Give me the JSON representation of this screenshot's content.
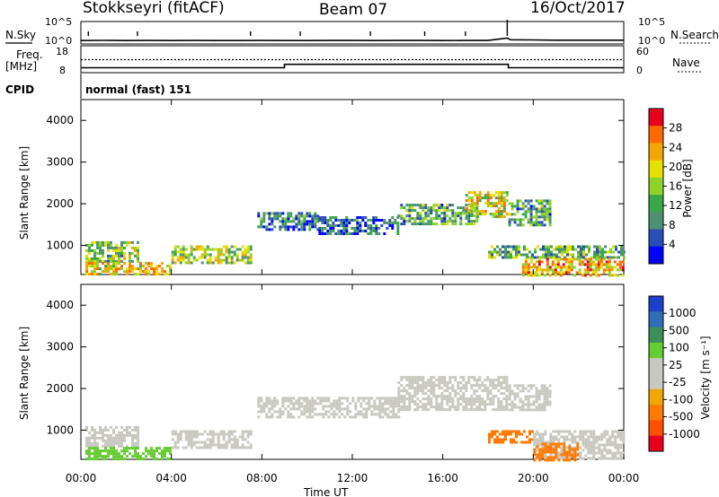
{
  "header": {
    "station": "Stokkseyri (fitACF)",
    "beam": "Beam 07",
    "date": "16/Oct/2017"
  },
  "chart_data": [
    {
      "type": "line",
      "panel": "noise",
      "left_label": "N.Sky",
      "right_label": "N.Search",
      "left_ticks": [
        "10^5",
        "10^0"
      ],
      "right_ticks": [
        "10^5",
        "10^0"
      ],
      "x": [
        0,
        1,
        2,
        3,
        4,
        5,
        6,
        7,
        8,
        9,
        10,
        11,
        12,
        13,
        14,
        15,
        16,
        17,
        18,
        18.85,
        19,
        20,
        21,
        22,
        23,
        24
      ],
      "y_sky_log10": [
        0.6,
        0.65,
        0.6,
        0.62,
        0.6,
        0.63,
        0.6,
        0.6,
        0.62,
        0.6,
        0.6,
        0.62,
        0.62,
        0.6,
        0.63,
        0.62,
        0.6,
        0.62,
        0.62,
        1.2,
        0.8,
        0.75,
        0.7,
        0.7,
        0.7,
        0.7
      ],
      "spikes_x": [
        0.33,
        2.5,
        7.5,
        9.7,
        12.8,
        15.2,
        17.0,
        18.85
      ]
    },
    {
      "type": "line",
      "panel": "frequency",
      "left_label": "Freq.",
      "left_unit": "[MHz]",
      "right_label": "Nave",
      "left_ticks": [
        "18",
        "8"
      ],
      "right_ticks": [
        "60",
        "0"
      ],
      "x": [
        0,
        9.0,
        9.0,
        18.9,
        18.9,
        24
      ],
      "freq_mhz": [
        9.6,
        9.6,
        11.3,
        11.3,
        9.6,
        9.6
      ],
      "nave": [
        34,
        34,
        34,
        34,
        34,
        34
      ]
    },
    {
      "type": "text",
      "panel": "cpid",
      "label": "CPID",
      "value": "normal (fast) 151"
    },
    {
      "type": "heatmap",
      "panel": "power",
      "ylabel": "Slant Range [km]",
      "yticks": [
        "4000",
        "3000",
        "2000",
        "1000"
      ],
      "ylim": [
        300,
        4500
      ],
      "xlim": [
        0,
        24
      ],
      "colorbar_label": "Power [dB]",
      "colorbar_ticks": [
        "28",
        "24",
        "20",
        "16",
        "12",
        "8",
        "4"
      ],
      "colorbar_colors": [
        "#e8001f",
        "#ff6a00",
        "#f0a800",
        "#e4e000",
        "#8fd22a",
        "#3aa84a",
        "#4f8f75",
        "#2a4db8",
        "#0000ff"
      ],
      "regions": [
        {
          "x0": 0.2,
          "x1": 2.5,
          "r0": 600,
          "r1": 1100,
          "level": 0.45
        },
        {
          "x0": 0.2,
          "x1": 4.0,
          "r0": 300,
          "r1": 600,
          "level": 0.65
        },
        {
          "x0": 4.0,
          "x1": 7.5,
          "r0": 600,
          "r1": 1000,
          "level": 0.5
        },
        {
          "x0": 7.8,
          "x1": 10.5,
          "r0": 1400,
          "r1": 1800,
          "level": 0.25
        },
        {
          "x0": 10.5,
          "x1": 14.0,
          "r0": 1300,
          "r1": 1700,
          "level": 0.2
        },
        {
          "x0": 14.0,
          "x1": 17.5,
          "r0": 1500,
          "r1": 2000,
          "level": 0.35
        },
        {
          "x0": 17.0,
          "x1": 18.8,
          "r0": 1700,
          "r1": 2300,
          "level": 0.6
        },
        {
          "x0": 18.9,
          "x1": 20.8,
          "r0": 1500,
          "r1": 2100,
          "level": 0.35
        },
        {
          "x0": 18.0,
          "x1": 24.0,
          "r0": 700,
          "r1": 1000,
          "level": 0.4
        },
        {
          "x0": 19.5,
          "x1": 24.0,
          "r0": 300,
          "r1": 700,
          "level": 0.7
        }
      ]
    },
    {
      "type": "heatmap",
      "panel": "velocity",
      "ylabel": "Slant Range [km]",
      "yticks": [
        "4000",
        "3000",
        "2000",
        "1000"
      ],
      "ylim": [
        300,
        4500
      ],
      "xlim": [
        0,
        24
      ],
      "xticks": [
        "00:00",
        "04:00",
        "08:00",
        "12:00",
        "16:00",
        "20:00",
        "00:00"
      ],
      "xlabel": "Time UT",
      "colorbar_label": "Velocity [m s⁻¹]",
      "colorbar_ticks": [
        "1000",
        "500",
        "100",
        "25",
        "-25",
        "-100",
        "-500",
        "-1000"
      ],
      "colorbar_colors": [
        "#1f3fc8",
        "#2f6fb8",
        "#3a8f5a",
        "#66cc33",
        "#c8c8c0",
        "#c8c8c0",
        "#f0a800",
        "#ff7a00",
        "#ff5000",
        "#e8001f"
      ],
      "regions": [
        {
          "x0": 0.2,
          "x1": 2.5,
          "r0": 600,
          "r1": 1100,
          "color": "#c8c8c0"
        },
        {
          "x0": 0.2,
          "x1": 4.0,
          "r0": 300,
          "r1": 600,
          "color": "#66cc33"
        },
        {
          "x0": 4.0,
          "x1": 7.5,
          "r0": 600,
          "r1": 1000,
          "color": "#c8c8c0"
        },
        {
          "x0": 7.8,
          "x1": 14.0,
          "r0": 1300,
          "r1": 1800,
          "color": "#c8c8c0"
        },
        {
          "x0": 14.0,
          "x1": 18.8,
          "r0": 1500,
          "r1": 2300,
          "color": "#c8c8c0"
        },
        {
          "x0": 18.9,
          "x1": 20.8,
          "r0": 1500,
          "r1": 2100,
          "color": "#c8c8c0"
        },
        {
          "x0": 18.0,
          "x1": 20.0,
          "r0": 700,
          "r1": 1000,
          "color": "#ff7a00"
        },
        {
          "x0": 20.0,
          "x1": 24.0,
          "r0": 300,
          "r1": 1000,
          "color": "#c8c8c0"
        },
        {
          "x0": 20.0,
          "x1": 22.0,
          "r0": 300,
          "r1": 700,
          "color": "#ff7a00"
        }
      ]
    }
  ]
}
